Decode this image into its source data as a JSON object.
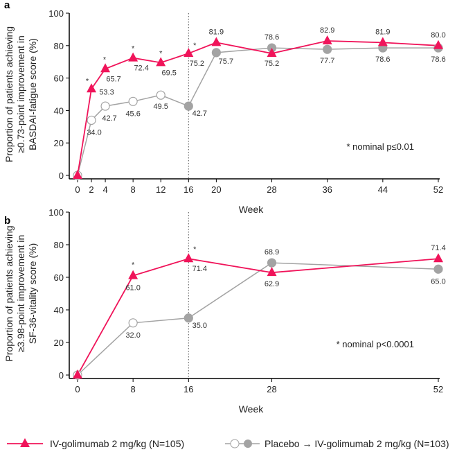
{
  "chart_data": [
    {
      "panel": "a",
      "type": "line",
      "xlabel": "Week",
      "ylabel": [
        "Proportion of patients achieving",
        "≥0.73-point improvement in",
        "BASDAI-fatigue score (%)"
      ],
      "ylim": [
        0,
        100
      ],
      "yticks": [
        0,
        20,
        40,
        60,
        80,
        100
      ],
      "x": [
        0,
        2,
        4,
        8,
        12,
        16,
        20,
        28,
        36,
        44,
        52
      ],
      "series": [
        {
          "name": "IV-golimumab 2 mg/kg (N=105)",
          "values": [
            0,
            53.3,
            65.7,
            72.4,
            69.5,
            75.2,
            81.9,
            75.2,
            82.9,
            81.9,
            80.0
          ],
          "labels": [
            "",
            "53.3",
            "65.7",
            "72.4",
            "69.5",
            "75.2",
            "81.9",
            "75.2",
            "82.9",
            "81.9",
            "80.0"
          ],
          "significant": [
            false,
            true,
            true,
            true,
            true,
            true,
            false,
            false,
            false,
            false,
            false
          ]
        },
        {
          "name": "Placebo → IV-golimumab 2 mg/kg (N=103)",
          "values": [
            0,
            34.0,
            42.7,
            45.6,
            49.5,
            42.7,
            75.7,
            78.6,
            77.7,
            78.6,
            78.6
          ],
          "labels": [
            "",
            "34.0",
            "42.7",
            "45.6",
            "49.5",
            "42.7",
            "75.7",
            "78.6",
            "77.7",
            "78.6",
            "78.6"
          ],
          "open_marker": [
            true,
            true,
            true,
            true,
            true,
            false,
            false,
            false,
            false,
            false,
            false
          ]
        }
      ],
      "vline_week": 16,
      "annotation": "* nominal p≤0.01",
      "star": "*"
    },
    {
      "panel": "b",
      "type": "line",
      "xlabel": "Week",
      "ylabel": [
        "Proportion of patients achieving",
        "≥3.98-point improvement in",
        "SF-36-vitality score (%)"
      ],
      "ylim": [
        0,
        100
      ],
      "yticks": [
        0,
        20,
        40,
        60,
        80,
        100
      ],
      "x": [
        0,
        8,
        16,
        28,
        52
      ],
      "series": [
        {
          "name": "IV-golimumab 2 mg/kg (N=105)",
          "values": [
            0,
            61.0,
            71.4,
            62.9,
            71.4
          ],
          "labels": [
            "",
            "61.0",
            "71.4",
            "62.9",
            "71.4"
          ],
          "significant": [
            false,
            true,
            true,
            false,
            false
          ]
        },
        {
          "name": "Placebo → IV-golimumab 2 mg/kg (N=103)",
          "values": [
            0,
            32.0,
            35.0,
            68.9,
            65.0
          ],
          "labels": [
            "",
            "32.0",
            "35.0",
            "68.9",
            "65.0"
          ],
          "open_marker": [
            true,
            true,
            false,
            false,
            false
          ]
        }
      ],
      "vline_week": 16,
      "annotation": "* nominal p<0.0001",
      "star": "*"
    }
  ],
  "legend": {
    "golimumab": "IV-golimumab 2 mg/kg (N=105)",
    "placebo": "Placebo → IV-golimumab 2 mg/kg (N=103)"
  },
  "colors": {
    "golimumab": "#f0145a",
    "placebo": "#a3a3a3"
  }
}
